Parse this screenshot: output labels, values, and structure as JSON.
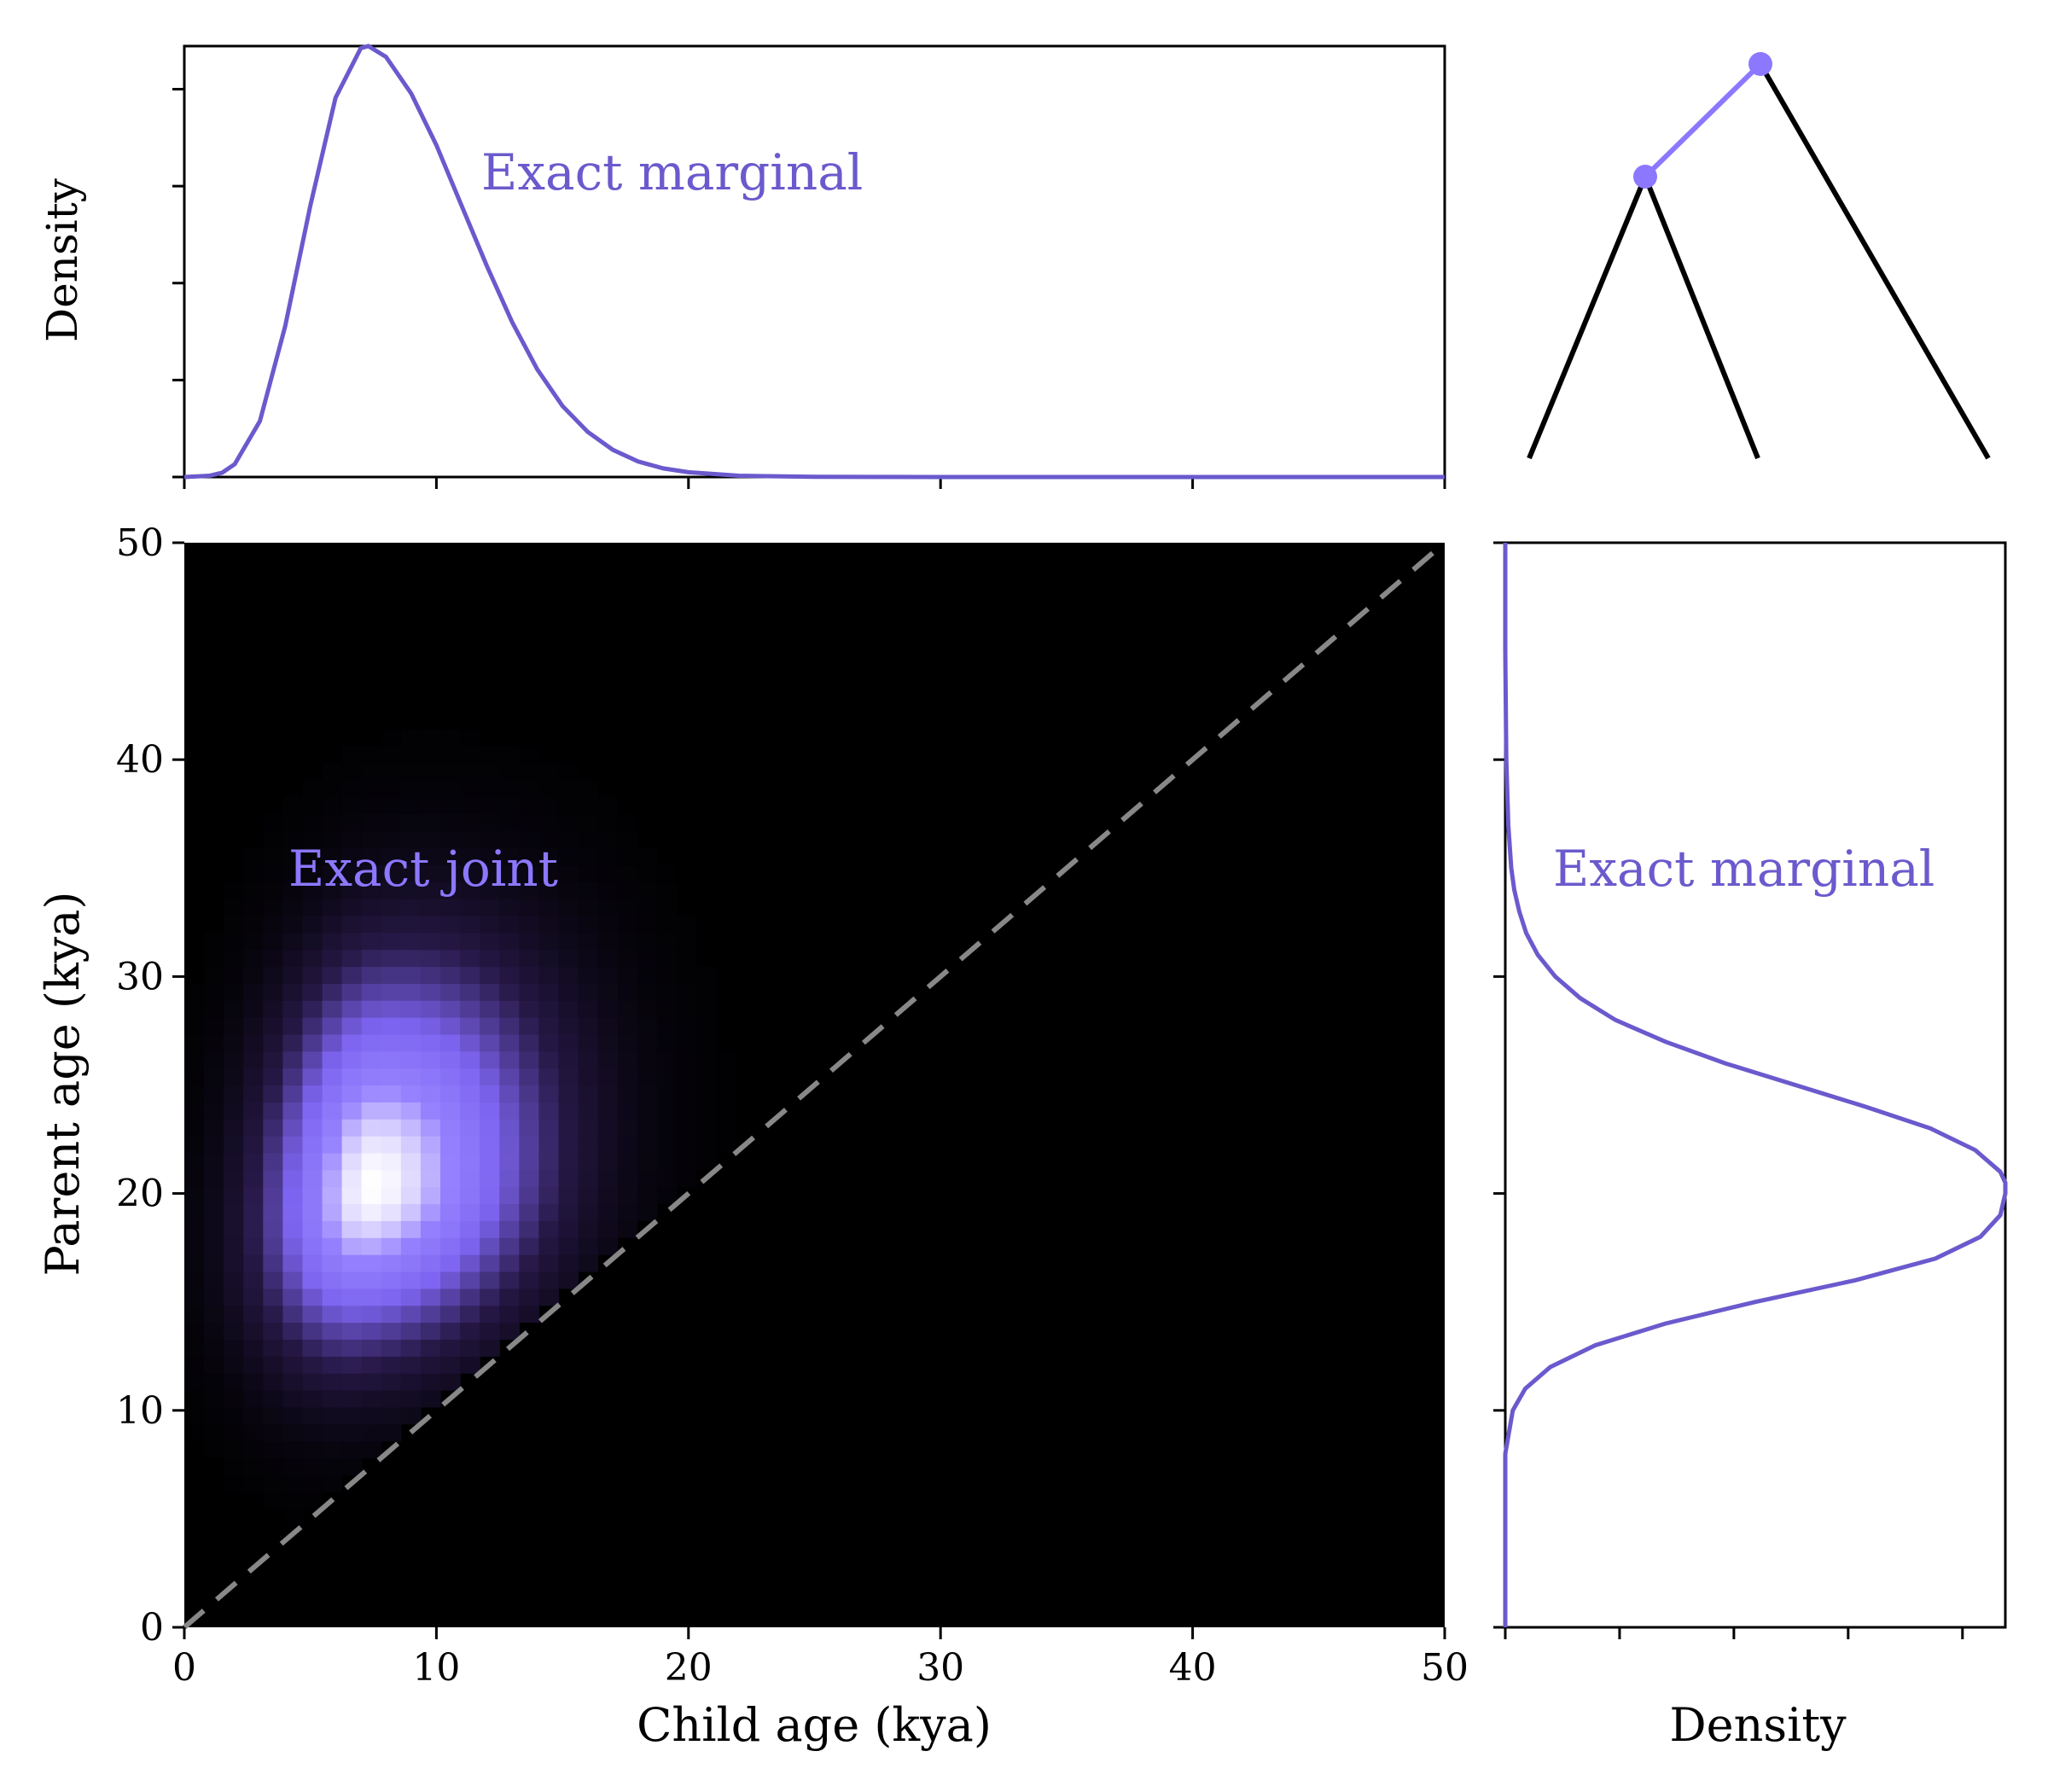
{
  "colors": {
    "marginal": "#6a5acd",
    "joint_label": "#8b78ff",
    "tree_highlight": "#8b78ff",
    "diagonal": "#888888",
    "background": "#000000"
  },
  "chart_data": [
    {
      "panel": "top-marginal",
      "type": "line",
      "ylabel": "Density",
      "xlim": [
        0,
        50
      ],
      "annotation": "Exact marginal",
      "x_ticks": [
        0,
        10,
        20,
        30,
        40,
        50
      ],
      "y_tick_count": 5,
      "series": [
        {
          "x": [
            0,
            1,
            1.5,
            2,
            3,
            4,
            5,
            6,
            7,
            7.3,
            8,
            9,
            10,
            11,
            12,
            13,
            14,
            15,
            16,
            17,
            18,
            19,
            20,
            22,
            25,
            30,
            40,
            50
          ],
          "y": [
            0,
            0.003,
            0.01,
            0.03,
            0.13,
            0.35,
            0.63,
            0.88,
            0.995,
            1.0,
            0.975,
            0.89,
            0.77,
            0.63,
            0.49,
            0.36,
            0.25,
            0.165,
            0.105,
            0.063,
            0.036,
            0.02,
            0.011,
            0.003,
            0.0005,
            0.0,
            0.0,
            0.0
          ]
        }
      ]
    },
    {
      "panel": "joint",
      "type": "heatmap",
      "xlabel": "Child age (kya)",
      "ylabel": "Parent age (kya)",
      "xlim": [
        0,
        50
      ],
      "ylim": [
        0,
        50
      ],
      "x_ticks": [
        0,
        10,
        20,
        30,
        40,
        50
      ],
      "y_ticks": [
        0,
        10,
        20,
        30,
        40,
        50
      ],
      "annotation": "Exact joint",
      "peak": {
        "x": 7.4,
        "y": 20.3
      },
      "reference_line": {
        "x": [
          0,
          50
        ],
        "y": [
          0,
          50
        ],
        "style": "dashed"
      }
    },
    {
      "panel": "right-marginal",
      "type": "line",
      "xlabel": "Density",
      "ylim": [
        0,
        50
      ],
      "annotation": "Exact marginal",
      "x_tick_count": 5,
      "y_ticks": [
        0,
        10,
        20,
        30,
        40,
        50
      ],
      "series": [
        {
          "y": [
            0,
            8,
            10,
            11,
            12,
            13,
            14,
            15,
            16,
            17,
            18,
            19,
            20,
            20.5,
            21,
            22,
            23,
            24,
            25,
            26,
            27,
            28,
            29,
            30,
            31,
            32,
            33,
            34,
            35,
            37,
            40,
            45,
            50
          ],
          "x": [
            0,
            0.0,
            0.015,
            0.04,
            0.09,
            0.18,
            0.32,
            0.5,
            0.7,
            0.86,
            0.95,
            0.99,
            1.0,
            1.0,
            0.99,
            0.94,
            0.85,
            0.72,
            0.58,
            0.44,
            0.32,
            0.22,
            0.15,
            0.1,
            0.065,
            0.042,
            0.028,
            0.018,
            0.012,
            0.006,
            0.002,
            0.0,
            0.0
          ]
        }
      ]
    }
  ],
  "tree": {
    "nodes_highlighted": 2
  }
}
